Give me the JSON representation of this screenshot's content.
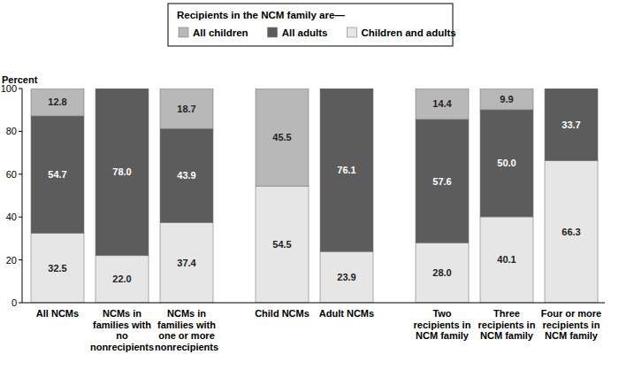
{
  "chart_data": {
    "type": "bar",
    "stacked": true,
    "data_labels": true,
    "legend": "top",
    "grid": false,
    "title": "Recipients in the NCM family are—",
    "y_label": "Percent",
    "categories": [
      "All NCMs",
      "NCMs in families with no nonrecipients",
      "NCMs in families with one or more nonrecipients",
      "Child NCMs",
      "Adult NCMs",
      "Two recipients in NCM family",
      "Three recipients in NCM family",
      "Four or more recipients in NCM family"
    ],
    "series": [
      {
        "name": "All children",
        "color": "#b8b8b8",
        "values": [
          12.8,
          null,
          18.7,
          45.5,
          null,
          14.4,
          9.9,
          null
        ],
        "value_labels": [
          "12.8",
          null,
          "18.7",
          "45.5",
          null,
          "14.4",
          "9.9",
          null
        ]
      },
      {
        "name": "All adults",
        "color": "#5c5c5c",
        "values": [
          54.7,
          78.0,
          43.9,
          null,
          76.1,
          57.6,
          50.0,
          33.7
        ],
        "value_labels": [
          "54.7",
          "78.0",
          "43.9",
          null,
          "76.1",
          "57.6",
          "50.0",
          "33.7"
        ]
      },
      {
        "name": "Children and adults",
        "color": "#e6e6e6",
        "values": [
          32.5,
          22.0,
          37.4,
          54.5,
          23.9,
          28.0,
          40.1,
          66.3
        ],
        "value_labels": [
          "32.5",
          "22.0",
          "37.4",
          "54.5",
          "23.9",
          "28.0",
          "40.1",
          "66.3"
        ]
      }
    ],
    "ylim": [
      0,
      100
    ],
    "yticks": [
      0,
      20,
      40,
      60,
      80,
      100
    ]
  }
}
